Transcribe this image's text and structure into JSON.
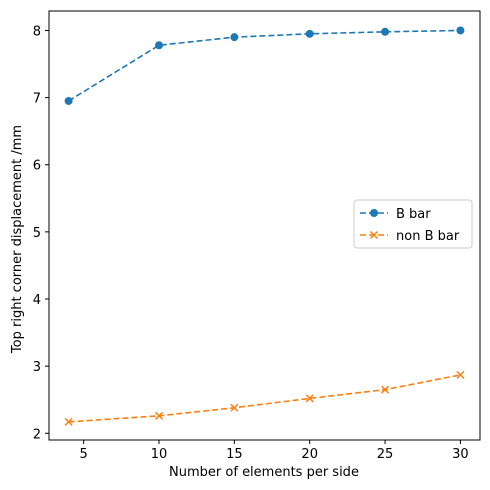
{
  "chart_data": {
    "type": "line",
    "title": "",
    "xlabel": "Number of elements per side",
    "ylabel": "Top right corner displacement /mm",
    "x": [
      4,
      10,
      15,
      20,
      25,
      30
    ],
    "xlim": [
      2.7,
      31.3
    ],
    "ylim": [
      1.9,
      8.29
    ],
    "xticks": [
      5,
      10,
      15,
      20,
      25,
      30
    ],
    "yticks": [
      2,
      3,
      4,
      5,
      6,
      7,
      8
    ],
    "grid": false,
    "legend_position": "center-right",
    "series": [
      {
        "name": "B bar",
        "values": [
          6.95,
          7.78,
          7.9,
          7.95,
          7.98,
          8.0
        ],
        "color": "#1f77b4",
        "marker": "circle",
        "linestyle": "dashed"
      },
      {
        "name": "non B bar",
        "values": [
          2.17,
          2.26,
          2.38,
          2.52,
          2.65,
          2.87
        ],
        "color": "#ff7f0e",
        "marker": "x",
        "linestyle": "dashed"
      }
    ]
  }
}
